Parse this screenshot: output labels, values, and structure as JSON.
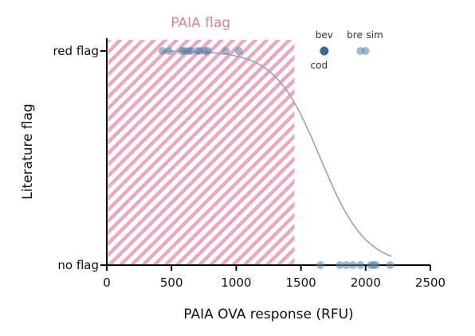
{
  "chart_data": {
    "type": "scatter",
    "title": "",
    "xlabel": "PAIA OVA response (RFU)",
    "ylabel": "Literature flag",
    "xlim": [
      0,
      2500
    ],
    "xticks": [
      "0",
      "500",
      "1000",
      "1500",
      "2000",
      "2500"
    ],
    "yticks": [
      "no flag",
      "red flag"
    ],
    "grid": false,
    "band": {
      "label": "PAIA flag",
      "x_range": [
        0,
        1450
      ],
      "color": "#d9819f"
    },
    "points": {
      "red_flag": [
        430,
        480,
        580,
        600,
        630,
        650,
        700,
        720,
        760,
        780,
        920,
        1020,
        1680,
        1960,
        2000
      ],
      "no_flag": [
        1650,
        1800,
        1850,
        1900,
        1960,
        2040,
        2060,
        2080,
        2190
      ]
    },
    "highlighted_point": {
      "x": 1680,
      "flag": "red flag"
    },
    "point_labels": [
      {
        "text": "bev",
        "x": 1680,
        "color": "#3a9a3a"
      },
      {
        "text": "cod",
        "x": 1640,
        "color": "#333333"
      },
      {
        "text": "bre",
        "x": 1915,
        "color": "#333333"
      },
      {
        "text": "sim",
        "x": 2070,
        "color": "#333333"
      }
    ],
    "fit_curve": {
      "type": "logistic",
      "midpoint": 1650,
      "scale": 175,
      "x_range": [
        430,
        2200
      ],
      "color": "#8fa3c6"
    },
    "colors": {
      "point": "#5b7fa8",
      "point_dark": "#3f6590",
      "axis": "#000000"
    }
  }
}
